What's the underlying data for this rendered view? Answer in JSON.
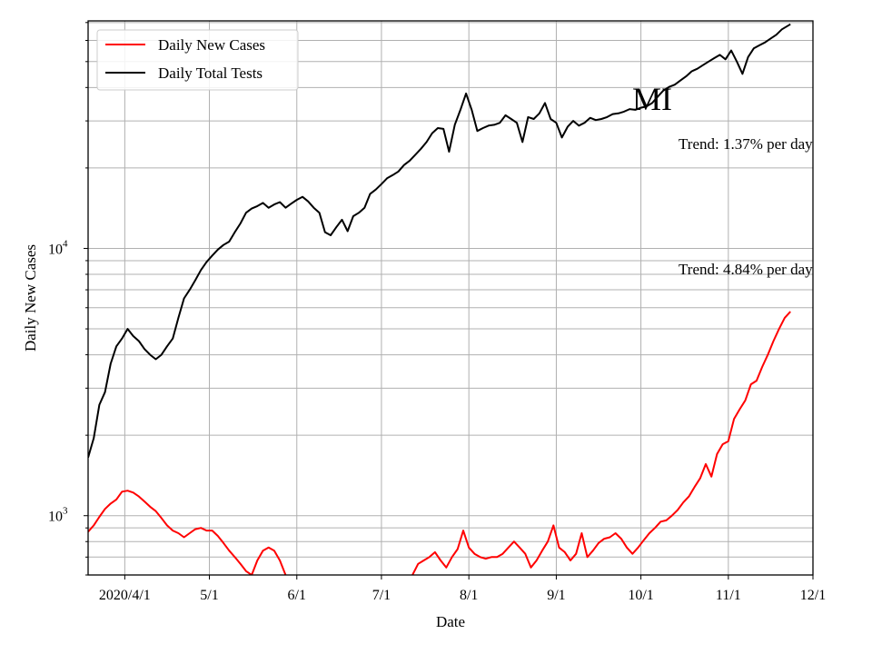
{
  "chart_data": {
    "type": "line",
    "state_label": "MI",
    "xlabel": "Date",
    "ylabel": "Daily New Cases",
    "y_scale": "log",
    "ylim": [
      600,
      71000
    ],
    "xlim": [
      "2020-03-19",
      "2020-12-01"
    ],
    "grid": true,
    "legend_position": "top-left",
    "x_ticks": [
      {
        "date": "2020-04-01",
        "label": "2020/4/1"
      },
      {
        "date": "2020-05-01",
        "label": "5/1"
      },
      {
        "date": "2020-06-01",
        "label": "6/1"
      },
      {
        "date": "2020-07-01",
        "label": "7/1"
      },
      {
        "date": "2020-08-01",
        "label": "8/1"
      },
      {
        "date": "2020-09-01",
        "label": "9/1"
      },
      {
        "date": "2020-10-01",
        "label": "10/1"
      },
      {
        "date": "2020-11-01",
        "label": "11/1"
      },
      {
        "date": "2020-12-01",
        "label": "12/1"
      }
    ],
    "y_ticks": [
      {
        "value": 1000,
        "base": "10",
        "exp": "3"
      },
      {
        "value": 10000,
        "base": "10",
        "exp": "4"
      }
    ],
    "annotations": [
      {
        "text": "Trend: 1.37% per day",
        "series": "Daily Total Tests"
      },
      {
        "text": "Trend: 4.84% per day",
        "series": "Daily New Cases"
      }
    ],
    "series": [
      {
        "name": "Daily New Cases",
        "color": "#ff0000",
        "points": [
          [
            "2020-03-19",
            870
          ],
          [
            "2020-03-21",
            920
          ],
          [
            "2020-03-23",
            990
          ],
          [
            "2020-03-25",
            1060
          ],
          [
            "2020-03-27",
            1110
          ],
          [
            "2020-03-29",
            1150
          ],
          [
            "2020-03-31",
            1230
          ],
          [
            "2020-04-02",
            1240
          ],
          [
            "2020-04-04",
            1220
          ],
          [
            "2020-04-06",
            1180
          ],
          [
            "2020-04-08",
            1130
          ],
          [
            "2020-04-10",
            1080
          ],
          [
            "2020-04-12",
            1040
          ],
          [
            "2020-04-14",
            980
          ],
          [
            "2020-04-16",
            920
          ],
          [
            "2020-04-18",
            880
          ],
          [
            "2020-04-20",
            860
          ],
          [
            "2020-04-22",
            830
          ],
          [
            "2020-04-24",
            860
          ],
          [
            "2020-04-26",
            890
          ],
          [
            "2020-04-28",
            900
          ],
          [
            "2020-04-30",
            880
          ],
          [
            "2020-05-02",
            880
          ],
          [
            "2020-05-04",
            840
          ],
          [
            "2020-05-06",
            790
          ],
          [
            "2020-05-08",
            740
          ],
          [
            "2020-05-10",
            700
          ],
          [
            "2020-05-12",
            660
          ],
          [
            "2020-05-14",
            620
          ],
          [
            "2020-05-16",
            600
          ],
          [
            "2020-05-18",
            680
          ],
          [
            "2020-05-20",
            740
          ],
          [
            "2020-05-22",
            760
          ],
          [
            "2020-05-24",
            740
          ],
          [
            "2020-05-26",
            680
          ],
          [
            "2020-05-28",
            600
          ],
          null,
          [
            "2020-07-12",
            600
          ],
          [
            "2020-07-14",
            660
          ],
          [
            "2020-07-16",
            680
          ],
          [
            "2020-07-18",
            700
          ],
          [
            "2020-07-20",
            730
          ],
          [
            "2020-07-22",
            680
          ],
          [
            "2020-07-24",
            640
          ],
          [
            "2020-07-26",
            700
          ],
          [
            "2020-07-28",
            750
          ],
          [
            "2020-07-30",
            880
          ],
          [
            "2020-08-01",
            760
          ],
          [
            "2020-08-03",
            720
          ],
          [
            "2020-08-05",
            700
          ],
          [
            "2020-08-07",
            690
          ],
          [
            "2020-08-09",
            700
          ],
          [
            "2020-08-11",
            700
          ],
          [
            "2020-08-13",
            720
          ],
          [
            "2020-08-15",
            760
          ],
          [
            "2020-08-17",
            800
          ],
          [
            "2020-08-19",
            760
          ],
          [
            "2020-08-21",
            720
          ],
          [
            "2020-08-23",
            640
          ],
          [
            "2020-08-25",
            680
          ],
          [
            "2020-08-27",
            740
          ],
          [
            "2020-08-29",
            800
          ],
          [
            "2020-08-31",
            920
          ],
          [
            "2020-09-02",
            760
          ],
          [
            "2020-09-04",
            730
          ],
          [
            "2020-09-06",
            680
          ],
          [
            "2020-09-08",
            720
          ],
          [
            "2020-09-10",
            860
          ],
          [
            "2020-09-12",
            700
          ],
          [
            "2020-09-14",
            740
          ],
          [
            "2020-09-16",
            790
          ],
          [
            "2020-09-18",
            820
          ],
          [
            "2020-09-20",
            830
          ],
          [
            "2020-09-22",
            860
          ],
          [
            "2020-09-24",
            820
          ],
          [
            "2020-09-26",
            760
          ],
          [
            "2020-09-28",
            720
          ],
          [
            "2020-09-30",
            760
          ],
          [
            "2020-10-02",
            810
          ],
          [
            "2020-10-04",
            860
          ],
          [
            "2020-10-06",
            900
          ],
          [
            "2020-10-08",
            950
          ],
          [
            "2020-10-10",
            960
          ],
          [
            "2020-10-12",
            1000
          ],
          [
            "2020-10-14",
            1050
          ],
          [
            "2020-10-16",
            1120
          ],
          [
            "2020-10-18",
            1180
          ],
          [
            "2020-10-20",
            1280
          ],
          [
            "2020-10-22",
            1380
          ],
          [
            "2020-10-24",
            1560
          ],
          [
            "2020-10-26",
            1400
          ],
          [
            "2020-10-28",
            1700
          ],
          [
            "2020-10-30",
            1850
          ],
          [
            "2020-11-01",
            1900
          ],
          [
            "2020-11-03",
            2300
          ],
          [
            "2020-11-05",
            2500
          ],
          [
            "2020-11-07",
            2700
          ],
          [
            "2020-11-09",
            3100
          ],
          [
            "2020-11-11",
            3200
          ],
          [
            "2020-11-13",
            3600
          ],
          [
            "2020-11-15",
            4000
          ],
          [
            "2020-11-17",
            4500
          ],
          [
            "2020-11-19",
            5000
          ],
          [
            "2020-11-21",
            5500
          ],
          [
            "2020-11-23",
            5800
          ]
        ]
      },
      {
        "name": "Daily Total Tests",
        "color": "#000000",
        "points": [
          [
            "2020-03-19",
            1650
          ],
          [
            "2020-03-21",
            1950
          ],
          [
            "2020-03-23",
            2600
          ],
          [
            "2020-03-25",
            2900
          ],
          [
            "2020-03-27",
            3700
          ],
          [
            "2020-03-29",
            4300
          ],
          [
            "2020-03-31",
            4600
          ],
          [
            "2020-04-02",
            5000
          ],
          [
            "2020-04-04",
            4700
          ],
          [
            "2020-04-06",
            4500
          ],
          [
            "2020-04-08",
            4200
          ],
          [
            "2020-04-10",
            4000
          ],
          [
            "2020-04-12",
            3850
          ],
          [
            "2020-04-14",
            4000
          ],
          [
            "2020-04-16",
            4300
          ],
          [
            "2020-04-18",
            4600
          ],
          [
            "2020-04-20",
            5500
          ],
          [
            "2020-04-22",
            6500
          ],
          [
            "2020-04-24",
            7000
          ],
          [
            "2020-04-26",
            7600
          ],
          [
            "2020-04-28",
            8300
          ],
          [
            "2020-04-30",
            8900
          ],
          [
            "2020-05-02",
            9400
          ],
          [
            "2020-05-04",
            9900
          ],
          [
            "2020-05-06",
            10300
          ],
          [
            "2020-05-08",
            10600
          ],
          [
            "2020-05-10",
            11500
          ],
          [
            "2020-05-12",
            12400
          ],
          [
            "2020-05-14",
            13600
          ],
          [
            "2020-05-16",
            14100
          ],
          [
            "2020-05-18",
            14400
          ],
          [
            "2020-05-20",
            14800
          ],
          [
            "2020-05-22",
            14200
          ],
          [
            "2020-05-24",
            14600
          ],
          [
            "2020-05-26",
            14900
          ],
          [
            "2020-05-28",
            14200
          ],
          [
            "2020-05-30",
            14700
          ],
          [
            "2020-06-01",
            15200
          ],
          [
            "2020-06-03",
            15600
          ],
          [
            "2020-06-05",
            15000
          ],
          [
            "2020-06-07",
            14200
          ],
          [
            "2020-06-09",
            13600
          ],
          [
            "2020-06-11",
            11500
          ],
          [
            "2020-06-13",
            11200
          ],
          [
            "2020-06-15",
            12000
          ],
          [
            "2020-06-17",
            12800
          ],
          [
            "2020-06-19",
            11600
          ],
          [
            "2020-06-21",
            13200
          ],
          [
            "2020-06-23",
            13600
          ],
          [
            "2020-06-25",
            14200
          ],
          [
            "2020-06-27",
            16000
          ],
          [
            "2020-06-29",
            16600
          ],
          [
            "2020-07-01",
            17400
          ],
          [
            "2020-07-03",
            18300
          ],
          [
            "2020-07-05",
            18800
          ],
          [
            "2020-07-07",
            19400
          ],
          [
            "2020-07-09",
            20500
          ],
          [
            "2020-07-11",
            21300
          ],
          [
            "2020-07-13",
            22400
          ],
          [
            "2020-07-15",
            23600
          ],
          [
            "2020-07-17",
            25000
          ],
          [
            "2020-07-19",
            27000
          ],
          [
            "2020-07-21",
            28200
          ],
          [
            "2020-07-23",
            28000
          ],
          [
            "2020-07-25",
            23000
          ],
          [
            "2020-07-27",
            29000
          ],
          [
            "2020-07-29",
            33000
          ],
          [
            "2020-07-31",
            38000
          ],
          [
            "2020-08-02",
            33000
          ],
          [
            "2020-08-04",
            27500
          ],
          [
            "2020-08-06",
            28200
          ],
          [
            "2020-08-08",
            28800
          ],
          [
            "2020-08-10",
            29000
          ],
          [
            "2020-08-12",
            29500
          ],
          [
            "2020-08-14",
            31500
          ],
          [
            "2020-08-16",
            30500
          ],
          [
            "2020-08-18",
            29500
          ],
          [
            "2020-08-20",
            25000
          ],
          [
            "2020-08-22",
            31000
          ],
          [
            "2020-08-24",
            30500
          ],
          [
            "2020-08-26",
            32000
          ],
          [
            "2020-08-28",
            35000
          ],
          [
            "2020-08-30",
            30500
          ],
          [
            "2020-09-01",
            29500
          ],
          [
            "2020-09-03",
            26000
          ],
          [
            "2020-09-05",
            28500
          ],
          [
            "2020-09-07",
            30000
          ],
          [
            "2020-09-09",
            28800
          ],
          [
            "2020-09-11",
            29500
          ],
          [
            "2020-09-13",
            30800
          ],
          [
            "2020-09-15",
            30200
          ],
          [
            "2020-09-17",
            30500
          ],
          [
            "2020-09-19",
            31000
          ],
          [
            "2020-09-21",
            31800
          ],
          [
            "2020-09-23",
            32000
          ],
          [
            "2020-09-25",
            32500
          ],
          [
            "2020-09-27",
            33200
          ],
          [
            "2020-09-29",
            33000
          ],
          [
            "2020-10-01",
            33600
          ],
          [
            "2020-10-03",
            34000
          ],
          [
            "2020-10-05",
            35000
          ],
          [
            "2020-10-07",
            37000
          ],
          [
            "2020-10-09",
            39000
          ],
          [
            "2020-10-11",
            40200
          ],
          [
            "2020-10-13",
            41000
          ],
          [
            "2020-10-15",
            42500
          ],
          [
            "2020-10-17",
            44000
          ],
          [
            "2020-10-19",
            46000
          ],
          [
            "2020-10-21",
            47000
          ],
          [
            "2020-10-23",
            48500
          ],
          [
            "2020-10-25",
            50000
          ],
          [
            "2020-10-27",
            51500
          ],
          [
            "2020-10-29",
            53000
          ],
          [
            "2020-10-31",
            51000
          ],
          [
            "2020-11-02",
            55000
          ],
          [
            "2020-11-04",
            50000
          ],
          [
            "2020-11-06",
            45000
          ],
          [
            "2020-11-08",
            52000
          ],
          [
            "2020-11-10",
            56000
          ],
          [
            "2020-11-12",
            57500
          ],
          [
            "2020-11-14",
            59000
          ],
          [
            "2020-11-16",
            61000
          ],
          [
            "2020-11-18",
            63000
          ],
          [
            "2020-11-20",
            66000
          ],
          [
            "2020-11-23",
            69000
          ]
        ]
      }
    ]
  }
}
